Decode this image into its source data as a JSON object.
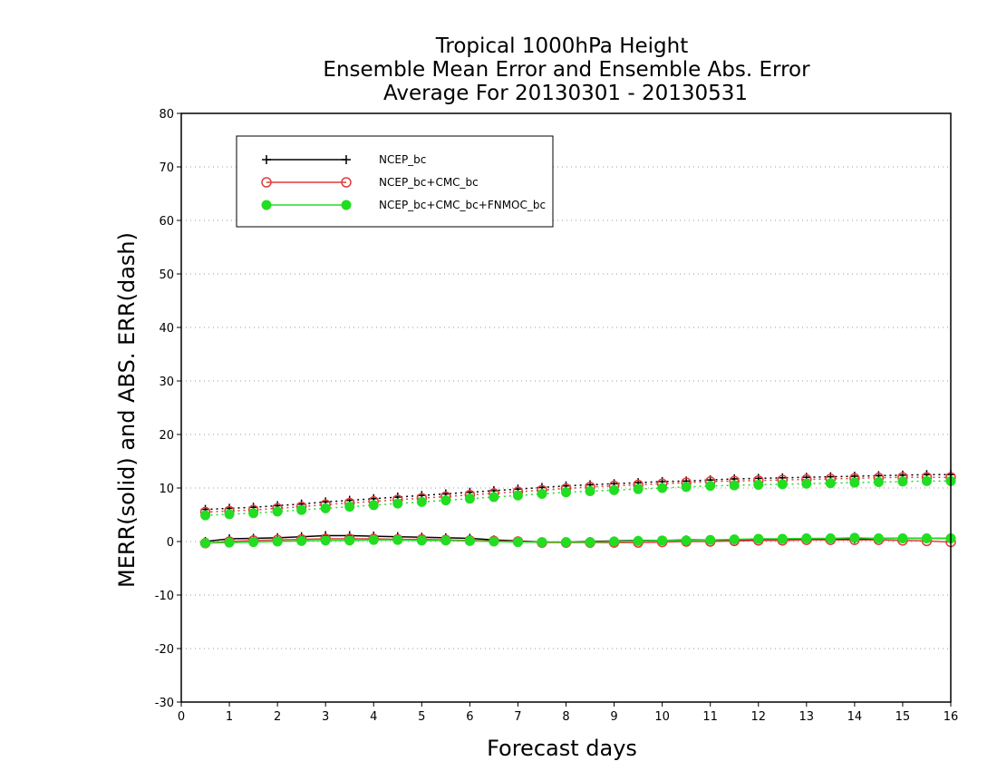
{
  "chart_data": {
    "type": "line",
    "title_lines": [
      "Tropical 1000hPa Height",
      "Ensemble Mean Error and Ensemble Abs. Error",
      "Average For 20130301 - 20130531"
    ],
    "xlabel": "Forecast days",
    "ylabel": "MERR(solid) and ABS. ERR(dash)",
    "xlim": [
      0,
      16
    ],
    "ylim": [
      -30,
      80
    ],
    "x_ticks": [
      "0",
      "1",
      "2",
      "3",
      "4",
      "5",
      "6",
      "7",
      "8",
      "9",
      "10",
      "11",
      "12",
      "13",
      "14",
      "15",
      "16"
    ],
    "y_ticks": [
      "80",
      "70",
      "60",
      "50",
      "40",
      "30",
      "20",
      "10",
      "0",
      "-10",
      "-20",
      "-30"
    ],
    "grid": true,
    "legend_position": "top-left",
    "x": [
      0.5,
      1,
      1.5,
      2,
      2.5,
      3,
      3.5,
      4,
      4.5,
      5,
      5.5,
      6,
      6.5,
      7,
      7.5,
      8,
      8.5,
      9,
      9.5,
      10,
      10.5,
      11,
      11.5,
      12,
      12.5,
      13,
      13.5,
      14,
      14.5,
      15,
      15.5,
      16
    ],
    "series": [
      {
        "name": "NCEP_bc",
        "color": "#000000",
        "marker": "plus",
        "merr": [
          0.0,
          0.5,
          0.6,
          0.7,
          0.9,
          1.1,
          1.1,
          1.0,
          0.9,
          0.8,
          0.7,
          0.6,
          0.3,
          0.1,
          -0.1,
          -0.1,
          0.0,
          0.1,
          0.2,
          0.2,
          0.3,
          0.3,
          0.3,
          0.4,
          0.4,
          0.5,
          0.5,
          0.5,
          0.6,
          0.6,
          0.6,
          0.6
        ],
        "abs_err": [
          6.0,
          6.2,
          6.4,
          6.7,
          7.0,
          7.4,
          7.7,
          8.0,
          8.3,
          8.6,
          8.9,
          9.2,
          9.5,
          9.8,
          10.1,
          10.4,
          10.6,
          10.8,
          11.0,
          11.2,
          11.3,
          11.5,
          11.7,
          11.8,
          11.9,
          12.0,
          12.1,
          12.2,
          12.3,
          12.4,
          12.5,
          12.5
        ]
      },
      {
        "name": "NCEP_bc+CMC_bc",
        "color": "#e03c3c",
        "marker": "open-circle",
        "merr": [
          -0.3,
          0.0,
          0.2,
          0.3,
          0.4,
          0.5,
          0.5,
          0.5,
          0.4,
          0.4,
          0.3,
          0.2,
          0.1,
          0.0,
          -0.2,
          -0.2,
          -0.2,
          -0.2,
          -0.2,
          -0.1,
          0.0,
          0.0,
          0.1,
          0.2,
          0.2,
          0.3,
          0.3,
          0.3,
          0.3,
          0.2,
          0.1,
          -0.1
        ],
        "abs_err": [
          5.5,
          5.7,
          5.9,
          6.2,
          6.5,
          6.9,
          7.2,
          7.5,
          7.8,
          8.1,
          8.4,
          8.7,
          9.0,
          9.3,
          9.6,
          9.9,
          10.2,
          10.4,
          10.6,
          10.8,
          11.0,
          11.2,
          11.3,
          11.4,
          11.5,
          11.6,
          11.7,
          11.8,
          11.9,
          12.0,
          12.0,
          12.0
        ]
      },
      {
        "name": "NCEP_bc+CMC_bc+FNMOC_bc",
        "color": "#22dd22",
        "marker": "filled-circle",
        "merr": [
          -0.3,
          -0.2,
          -0.1,
          0.0,
          0.1,
          0.2,
          0.2,
          0.3,
          0.3,
          0.2,
          0.2,
          0.1,
          0.0,
          -0.1,
          -0.1,
          -0.1,
          -0.1,
          0.0,
          0.1,
          0.2,
          0.2,
          0.3,
          0.4,
          0.5,
          0.5,
          0.6,
          0.6,
          0.7,
          0.6,
          0.6,
          0.6,
          0.6
        ],
        "abs_err": [
          4.9,
          5.1,
          5.3,
          5.6,
          5.9,
          6.2,
          6.5,
          6.8,
          7.1,
          7.4,
          7.7,
          8.0,
          8.3,
          8.6,
          8.9,
          9.2,
          9.4,
          9.6,
          9.8,
          10.0,
          10.2,
          10.4,
          10.5,
          10.6,
          10.7,
          10.8,
          10.9,
          11.0,
          11.1,
          11.2,
          11.3,
          11.3
        ]
      }
    ]
  }
}
